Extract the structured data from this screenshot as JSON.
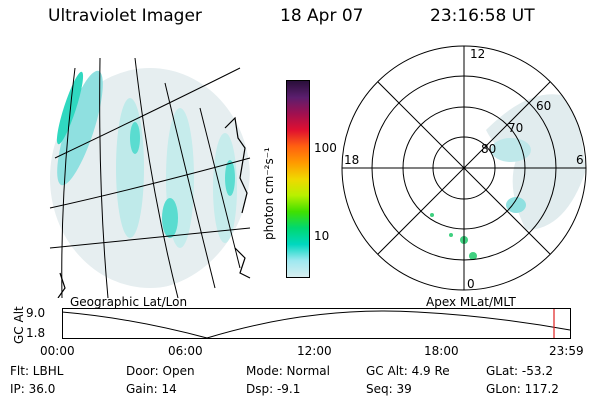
{
  "header": {
    "instrument": "Ultraviolet Imager",
    "date": "18 Apr 07",
    "time": "23:16:58 UT"
  },
  "left_panel": {
    "caption": "Geographic Lat/Lon"
  },
  "right_panel": {
    "caption": "Apex MLat/MLT",
    "mlt_labels": [
      "12",
      "18",
      "6",
      "0"
    ],
    "lat_labels": [
      "60",
      "70",
      "80"
    ]
  },
  "colorbar": {
    "unit_label": "photon cm⁻²s⁻¹",
    "ticks": [
      "100",
      "10"
    ],
    "colors": [
      "#2a0f3a",
      "#5b1e6e",
      "#a01050",
      "#e01030",
      "#ff6010",
      "#ff9a00",
      "#f0d800",
      "#b8f000",
      "#40e000",
      "#00d870",
      "#00d8c0",
      "#9ee8f0",
      "#d8eef0"
    ]
  },
  "altitude_strip": {
    "axis_label": "GC Alt",
    "y_ticks": [
      "9.0",
      "1.8"
    ],
    "x_ticks": [
      "00:00",
      "06:00",
      "12:00",
      "18:00",
      "23:59"
    ]
  },
  "status": {
    "flt": "Flt: LBHL",
    "ip": "IP: 36.0",
    "door": "Door: Open",
    "gain": "Gain: 14",
    "mode": "Mode: Normal",
    "dsp": "Dsp:    -9.1",
    "gc_alt": "GC Alt: 4.9 Re",
    "seq": "Seq: 39",
    "glat": "GLat: -53.2",
    "glon": "GLon: 117.2"
  }
}
